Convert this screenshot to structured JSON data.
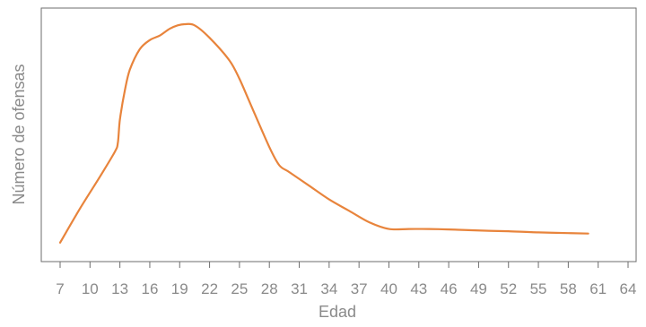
{
  "colors": {
    "line": "#e8843c",
    "frame": "#6e6e6e",
    "text": "#8a8a8a",
    "background": "#ffffff"
  },
  "chart_data": {
    "type": "line",
    "title": "",
    "xlabel": "Edad",
    "ylabel": "Número de ofensas",
    "xlim": [
      6,
      64
    ],
    "ylim": [
      0,
      100
    ],
    "y_ticks_shown": false,
    "grid": false,
    "legend": "none",
    "x_ticks": [
      7,
      10,
      13,
      16,
      19,
      22,
      25,
      28,
      31,
      34,
      37,
      40,
      43,
      46,
      49,
      52,
      55,
      58,
      61,
      64
    ],
    "series": [
      {
        "x": [
          7,
          9,
          11,
          12.5,
          12.8,
          13,
          13.5,
          14,
          15,
          16,
          17,
          18,
          18.8,
          19.5,
          20.5,
          22,
          24,
          25,
          26,
          28,
          29,
          30,
          32,
          34,
          36,
          38,
          40,
          42,
          44,
          46,
          48,
          50,
          52,
          55,
          58,
          60
        ],
        "y": [
          4,
          19,
          33,
          44,
          48,
          58,
          71,
          80,
          89,
          93,
          95,
          98,
          99.5,
          100,
          99.5,
          94,
          84,
          76,
          66,
          46,
          38,
          35,
          29,
          23,
          18,
          13,
          10,
          10,
          10,
          9.8,
          9.5,
          9.2,
          9,
          8.5,
          8.2,
          8
        ]
      }
    ]
  }
}
